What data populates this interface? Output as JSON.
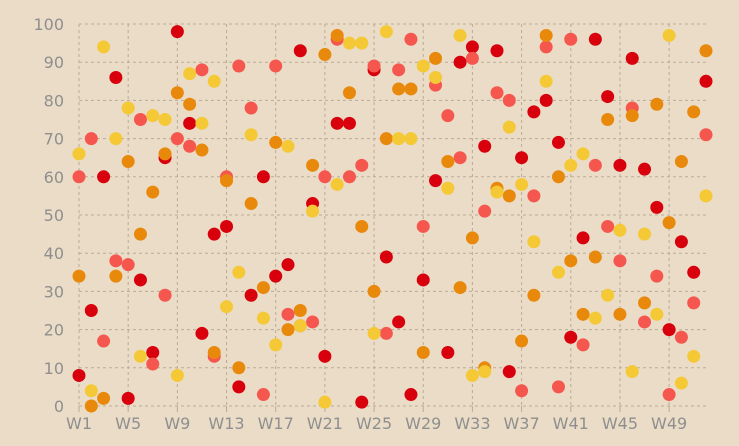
{
  "chart_data": {
    "type": "scatter",
    "title": "",
    "xlabel": "",
    "ylabel": "",
    "categories": [
      "W1",
      "W2",
      "W3",
      "W4",
      "W5",
      "W6",
      "W7",
      "W8",
      "W9",
      "W10",
      "W11",
      "W12",
      "W13",
      "W14",
      "W15",
      "W16",
      "W17",
      "W18",
      "W19",
      "W20",
      "W21",
      "W22",
      "W23",
      "W24",
      "W25",
      "W26",
      "W27",
      "W28",
      "W29",
      "W30",
      "W31",
      "W32",
      "W33",
      "W34",
      "W35",
      "W36",
      "W37",
      "W38",
      "W39",
      "W40",
      "W41",
      "W42",
      "W43",
      "W44",
      "W45",
      "W46",
      "W47",
      "W48",
      "W49",
      "W50",
      "W51",
      "W52"
    ],
    "x_tick_labels": [
      "W1",
      "W5",
      "W9",
      "W13",
      "W17",
      "W21",
      "W25",
      "W29",
      "W33",
      "W37",
      "W41",
      "W45",
      "W49"
    ],
    "ylim": [
      0,
      100
    ],
    "y_ticks": [
      0,
      10,
      20,
      30,
      40,
      50,
      60,
      70,
      80,
      90,
      100
    ],
    "grid": true,
    "legend": "none",
    "series": [
      {
        "color": "#d8000c",
        "values": [
          8,
          25,
          60,
          86,
          2,
          33,
          14,
          65,
          98,
          74,
          19,
          45,
          47,
          5,
          29,
          60,
          34,
          37,
          93,
          53,
          13,
          74,
          74,
          1,
          88,
          39,
          22,
          3,
          33,
          59,
          14,
          90,
          94,
          68,
          93,
          9,
          65,
          77,
          80,
          69,
          18,
          44,
          96,
          81,
          63,
          91,
          62,
          52,
          20,
          43,
          35,
          85
        ]
      },
      {
        "color": "#f5574f",
        "values": [
          60,
          70,
          17,
          38,
          37,
          75,
          11,
          29,
          70,
          68,
          88,
          13,
          60,
          89,
          78,
          3,
          89,
          24,
          21,
          22,
          60,
          96,
          60,
          63,
          89,
          19,
          88,
          96,
          47,
          84,
          76,
          65,
          91,
          51,
          82,
          80,
          4,
          55,
          94,
          5,
          96,
          16,
          63,
          47,
          38,
          78,
          22,
          34,
          3,
          18,
          27,
          71
        ]
      },
      {
        "color": "#e8890c",
        "values": [
          34,
          0,
          2,
          34,
          64,
          45,
          56,
          66,
          82,
          79,
          67,
          14,
          59,
          10,
          53,
          31,
          69,
          20,
          25,
          63,
          92,
          97,
          82,
          47,
          30,
          70,
          83,
          83,
          14,
          91,
          64,
          31,
          44,
          10,
          57,
          55,
          17,
          29,
          97,
          60,
          38,
          24,
          39,
          75,
          24,
          76,
          27,
          79,
          48,
          64,
          77,
          93
        ]
      },
      {
        "color": "#f5c836",
        "values": [
          66,
          4,
          94,
          70,
          78,
          13,
          76,
          75,
          8,
          87,
          74,
          85,
          26,
          35,
          71,
          23,
          16,
          68,
          21,
          51,
          1,
          58,
          95,
          95,
          19,
          98,
          70,
          70,
          89,
          86,
          57,
          97,
          8,
          9,
          56,
          73,
          58,
          43,
          85,
          35,
          63,
          66,
          23,
          29,
          46,
          9,
          45,
          24,
          97,
          6,
          13,
          55
        ]
      }
    ]
  }
}
